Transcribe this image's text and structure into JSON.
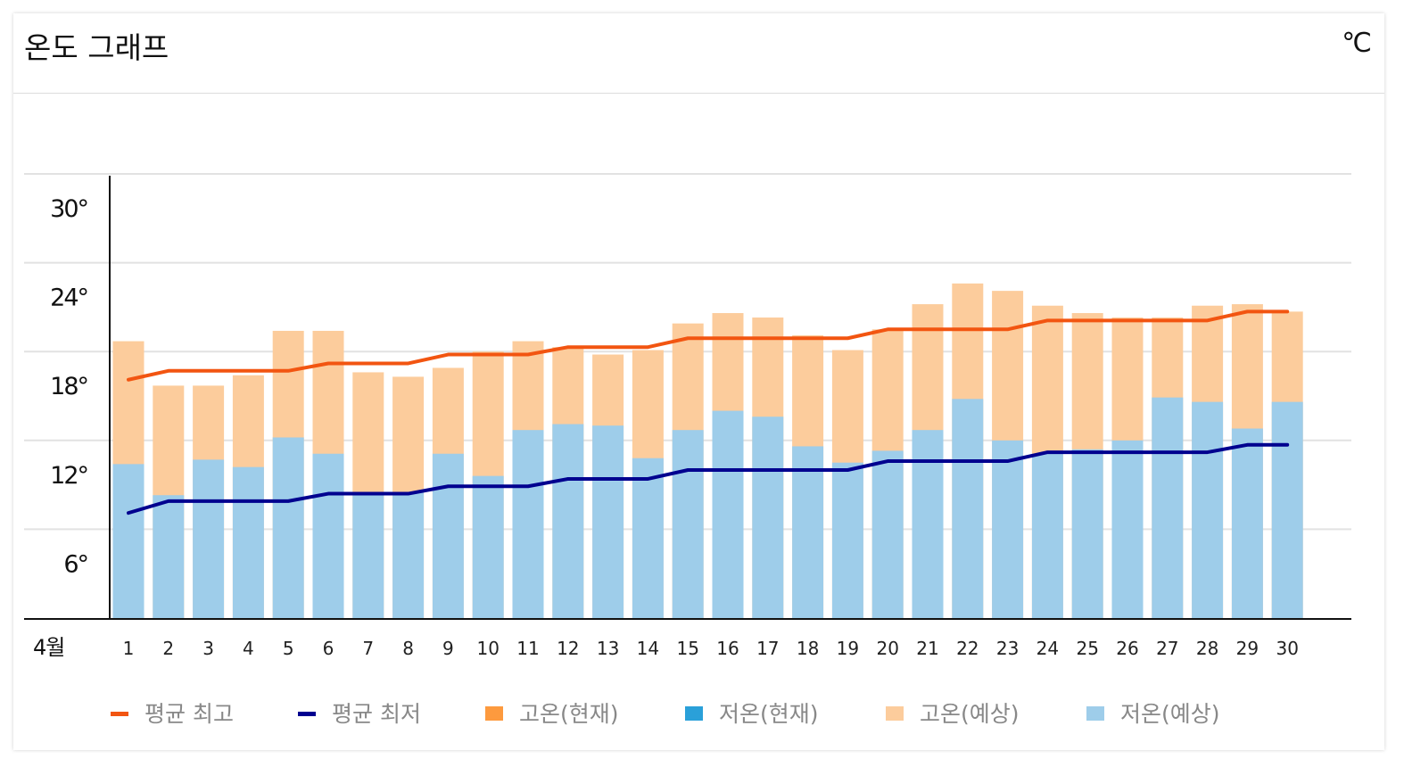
{
  "header": {
    "title": "온도 그래프",
    "unit": "℃"
  },
  "chart_data": {
    "type": "bar",
    "title": "온도 그래프",
    "xlabel": "4월",
    "ylabel": "",
    "ylim": [
      0,
      30
    ],
    "yticks": [
      6,
      12,
      18,
      24,
      30
    ],
    "ytick_labels": [
      "6°",
      "12°",
      "18°",
      "24°",
      "30°"
    ],
    "grid": true,
    "legend_position": "bottom",
    "categories": [
      "1",
      "2",
      "3",
      "4",
      "5",
      "6",
      "7",
      "8",
      "9",
      "10",
      "11",
      "12",
      "13",
      "14",
      "15",
      "16",
      "17",
      "18",
      "19",
      "20",
      "21",
      "22",
      "23",
      "24",
      "25",
      "26",
      "27",
      "28",
      "29",
      "30"
    ],
    "series": [
      {
        "name": "고온(예상)",
        "type": "bar",
        "color": "#fccc9c",
        "values": [
          18.7,
          15.7,
          15.7,
          16.4,
          19.4,
          19.4,
          16.6,
          16.3,
          16.9,
          18.0,
          18.7,
          18.3,
          17.8,
          18.1,
          19.9,
          20.6,
          20.3,
          19.1,
          18.1,
          19.5,
          21.2,
          22.6,
          22.1,
          21.1,
          20.6,
          20.3,
          20.3,
          21.1,
          21.2,
          20.7
        ]
      },
      {
        "name": "저온(예상)",
        "type": "bar",
        "color": "#9ecdea",
        "values": [
          10.4,
          8.3,
          10.7,
          10.2,
          12.2,
          11.1,
          8.5,
          8.5,
          11.1,
          9.6,
          12.7,
          13.1,
          13.0,
          10.8,
          12.7,
          14.0,
          13.6,
          11.6,
          10.5,
          11.3,
          12.7,
          14.8,
          12.0,
          11.1,
          11.4,
          12.0,
          14.9,
          14.6,
          12.8,
          14.6
        ]
      },
      {
        "name": "평균 최고",
        "type": "line",
        "color": "#f25511",
        "values": [
          16.1,
          16.7,
          16.7,
          16.7,
          16.7,
          17.2,
          17.2,
          17.2,
          17.8,
          17.8,
          17.8,
          18.3,
          18.3,
          18.3,
          18.9,
          18.9,
          18.9,
          18.9,
          18.9,
          19.5,
          19.5,
          19.5,
          19.5,
          20.1,
          20.1,
          20.1,
          20.1,
          20.1,
          20.7,
          20.7
        ]
      },
      {
        "name": "평균 최저",
        "type": "line",
        "color": "#00008f",
        "values": [
          7.1,
          7.9,
          7.9,
          7.9,
          7.9,
          8.4,
          8.4,
          8.4,
          8.9,
          8.9,
          8.9,
          9.4,
          9.4,
          9.4,
          10.0,
          10.0,
          10.0,
          10.0,
          10.0,
          10.6,
          10.6,
          10.6,
          10.6,
          11.2,
          11.2,
          11.2,
          11.2,
          11.2,
          11.7,
          11.7
        ]
      }
    ],
    "legend": [
      {
        "label": "평균 최고",
        "color": "#f25511",
        "shape": "line"
      },
      {
        "label": "평균 최저",
        "color": "#00008f",
        "shape": "line"
      },
      {
        "label": "고온(현재)",
        "color": "#fd9a3e",
        "shape": "square"
      },
      {
        "label": "저온(현재)",
        "color": "#2aa0d9",
        "shape": "square"
      },
      {
        "label": "고온(예상)",
        "color": "#fccc9c",
        "shape": "square"
      },
      {
        "label": "저온(예상)",
        "color": "#9ecdea",
        "shape": "square"
      }
    ]
  }
}
